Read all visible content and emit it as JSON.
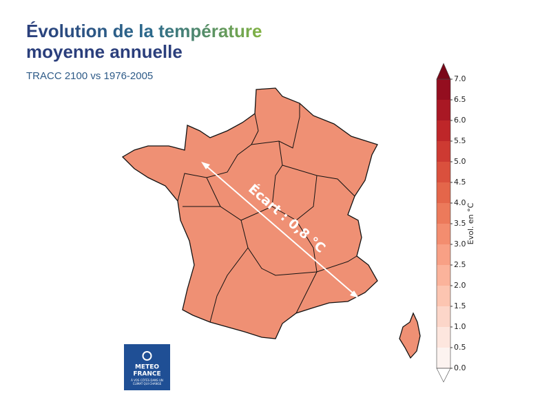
{
  "header": {
    "title_lines": [
      "Évolution de la température",
      "moyenne annuelle"
    ],
    "subtitle": "TRACC 2100 vs 1976-2005"
  },
  "map": {
    "annotation": "Écart : 0,8 °C"
  },
  "colorbar": {
    "label": "Evol. en °C",
    "lim": [
      0,
      7
    ],
    "ticks": [
      {
        "value": 0,
        "label": "0.0"
      },
      {
        "value": 0.5,
        "label": "0.5"
      },
      {
        "value": 1,
        "label": "1.0"
      },
      {
        "value": 1.5,
        "label": "1.5"
      },
      {
        "value": 2,
        "label": "2.0"
      },
      {
        "value": 2.5,
        "label": "2.5"
      },
      {
        "value": 3,
        "label": "3.0"
      },
      {
        "value": 3.5,
        "label": "3.5"
      },
      {
        "value": 4,
        "label": "4.0"
      },
      {
        "value": 4.5,
        "label": "4.5"
      },
      {
        "value": 5,
        "label": "5.0"
      },
      {
        "value": 5.5,
        "label": "5.5"
      },
      {
        "value": 6,
        "label": "6.0"
      },
      {
        "value": 6.5,
        "label": "6.5"
      },
      {
        "value": 7,
        "label": "7.0"
      }
    ],
    "colors": [
      "#fcf3f0",
      "#fde6de",
      "#fcd6c9",
      "#fcc5b1",
      "#fbb39b",
      "#f8a085",
      "#f38d6f",
      "#ec7a5b",
      "#e4664a",
      "#da503d",
      "#cd3a32",
      "#be2629",
      "#a91824",
      "#940e1f"
    ],
    "over_color": "#7a0818"
  },
  "logo": {
    "name_lines": [
      "METEO",
      "FRANCE"
    ],
    "tagline_lines": [
      "À VOS CÔTÉS DANS UN",
      "CLIMAT QUI CHANGE"
    ]
  }
}
